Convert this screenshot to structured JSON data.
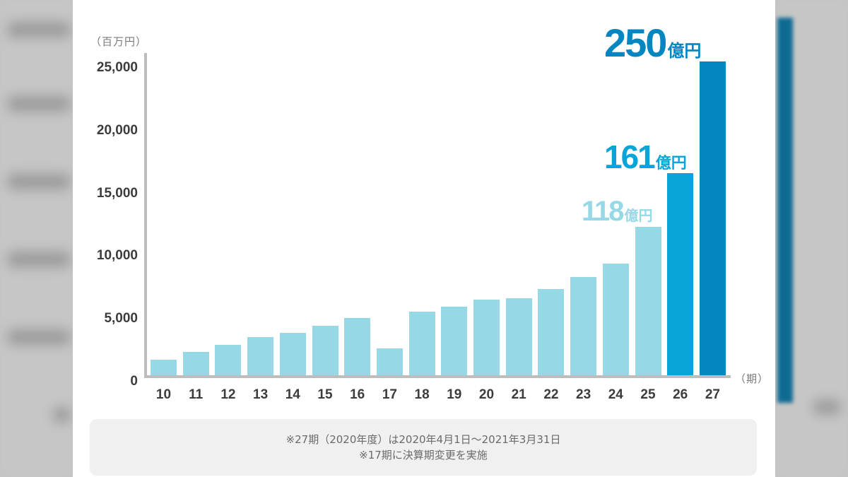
{
  "chart_data": {
    "type": "bar",
    "title": "",
    "xlabel": "（期）",
    "ylabel": "（百万円）",
    "ylim": [
      0,
      25000
    ],
    "yticks": [
      0,
      5000,
      10000,
      15000,
      20000,
      25000
    ],
    "ytick_labels": [
      "0",
      "5,000",
      "10,000",
      "15,000",
      "20,000",
      "25,000"
    ],
    "categories": [
      "10",
      "11",
      "12",
      "13",
      "14",
      "15",
      "16",
      "17",
      "18",
      "19",
      "20",
      "21",
      "22",
      "23",
      "24",
      "25",
      "26",
      "27"
    ],
    "values": [
      1250,
      1850,
      2400,
      3050,
      3400,
      3950,
      4550,
      2150,
      5050,
      5450,
      6050,
      6150,
      6850,
      7800,
      8900,
      11800,
      16100,
      25000
    ],
    "colors": [
      "#96d8e6",
      "#96d8e6",
      "#96d8e6",
      "#96d8e6",
      "#96d8e6",
      "#96d8e6",
      "#96d8e6",
      "#96d8e6",
      "#96d8e6",
      "#96d8e6",
      "#96d8e6",
      "#96d8e6",
      "#96d8e6",
      "#96d8e6",
      "#96d8e6",
      "#96d8e6",
      "#0aa5d8",
      "#0487c0"
    ],
    "annotations": [
      {
        "category": "25",
        "value": "118",
        "unit": "億円",
        "color": "#96d8e6"
      },
      {
        "category": "26",
        "value": "161",
        "unit": "億円",
        "color": "#0aa5d8"
      },
      {
        "category": "27",
        "value": "250",
        "unit": "億円",
        "color": "#0487c0"
      }
    ],
    "grid": false,
    "legend": null
  },
  "axis": {
    "y_unit": "（百万円）",
    "x_unit": "（期）"
  },
  "notes": {
    "line1": "※27期（2020年度）は2020年4月1日～2021年3月31日",
    "line2": "※17期に決算期変更を実施"
  }
}
